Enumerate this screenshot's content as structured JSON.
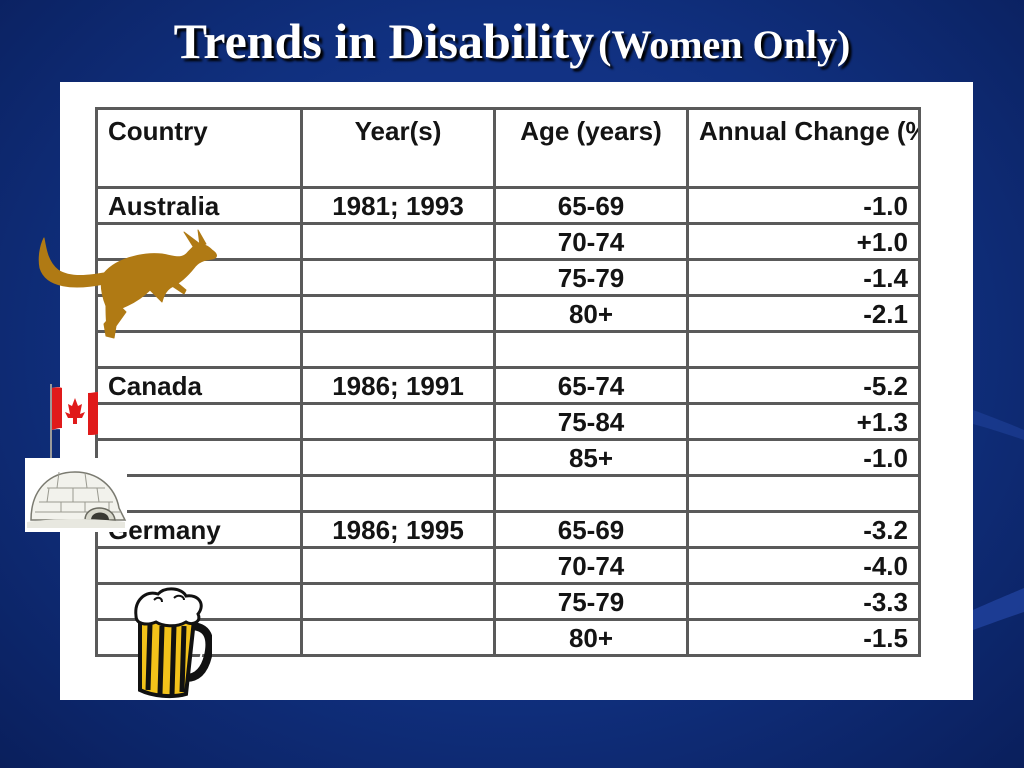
{
  "title": {
    "main": "Trends in Disability",
    "sub": "(Women Only)"
  },
  "table": {
    "headers": [
      "Country",
      "Year(s)",
      "Age (years)",
      "Annual Change (%)"
    ],
    "rows": [
      [
        "Australia",
        "1981; 1993",
        "65-69",
        "-1.0"
      ],
      [
        "",
        "",
        "70-74",
        "+1.0"
      ],
      [
        "",
        "",
        "75-79",
        "-1.4"
      ],
      [
        "",
        "",
        "80+",
        "-2.1"
      ],
      [
        "",
        "",
        "",
        ""
      ],
      [
        "Canada",
        "1986; 1991",
        "65-74",
        "-5.2"
      ],
      [
        "",
        "",
        "75-84",
        "+1.3"
      ],
      [
        "",
        "",
        "85+",
        "-1.0"
      ],
      [
        "",
        "",
        "",
        ""
      ],
      [
        "Germany",
        "1986; 1995",
        "65-69",
        "-3.2"
      ],
      [
        "",
        "",
        "70-74",
        "-4.0"
      ],
      [
        "",
        "",
        "75-79",
        "-3.3"
      ],
      [
        "",
        "",
        "80+",
        "-1.5"
      ]
    ]
  },
  "clipart": [
    "kangaroo-icon",
    "canada-flag-icon",
    "igloo-icon",
    "beer-mug-icon"
  ],
  "colors": {
    "background": "#10307f",
    "title": "#ffffff",
    "kangaroo": "#b07a14",
    "flag_red": "#e01a1a",
    "beer": "#f2c21a"
  }
}
